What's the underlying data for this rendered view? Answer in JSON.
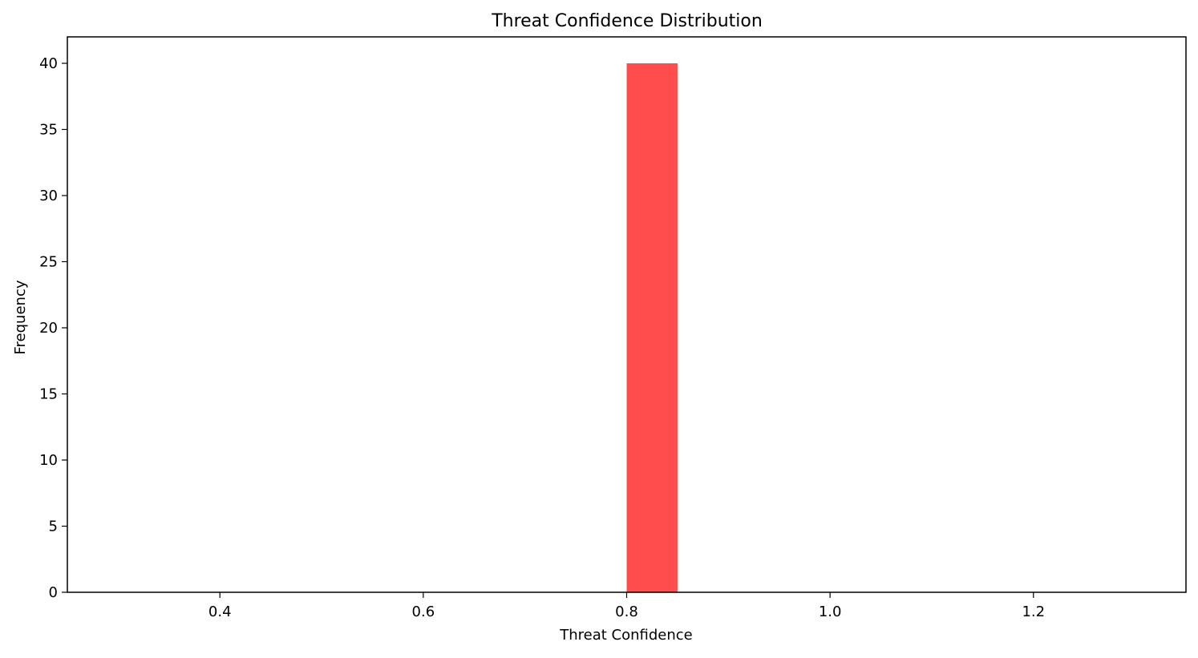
{
  "chart_data": {
    "type": "bar",
    "title": "Threat Confidence Distribution",
    "xlabel": "Threat Confidence",
    "ylabel": "Frequency",
    "xlim": [
      0.25,
      1.35
    ],
    "ylim": [
      0,
      42
    ],
    "x_ticks": [
      0.4,
      0.6,
      0.8,
      1.0,
      1.2
    ],
    "x_tick_labels": [
      "0.4",
      "0.6",
      "0.8",
      "1.0",
      "1.2"
    ],
    "y_ticks": [
      0,
      5,
      10,
      15,
      20,
      25,
      30,
      35,
      40
    ],
    "y_tick_labels": [
      "0",
      "5",
      "10",
      "15",
      "20",
      "25",
      "30",
      "35",
      "40"
    ],
    "bins": [
      {
        "x0": 0.8,
        "x1": 0.85,
        "count": 40
      }
    ],
    "bar_color": "#ff4c4c",
    "grid": false,
    "legend": "none"
  }
}
